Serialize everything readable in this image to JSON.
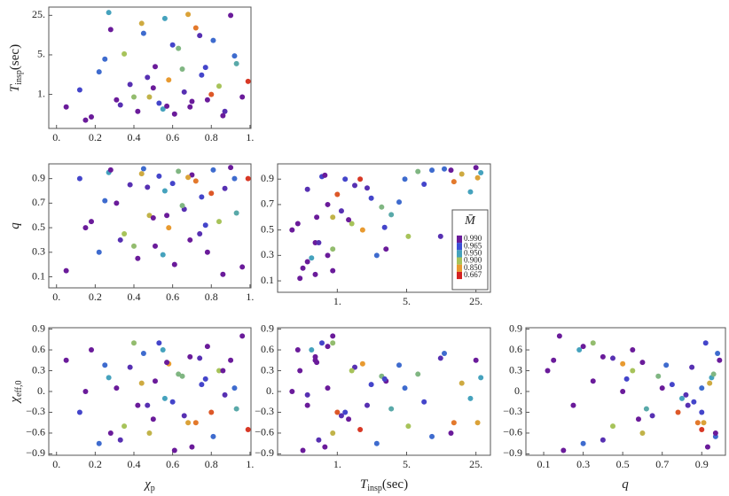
{
  "chart_data": {
    "type": "corner-scatter",
    "samples": {
      "chi_p": [
        0.05,
        0.12,
        0.18,
        0.22,
        0.27,
        0.31,
        0.35,
        0.38,
        0.42,
        0.45,
        0.48,
        0.51,
        0.53,
        0.56,
        0.58,
        0.61,
        0.63,
        0.66,
        0.69,
        0.72,
        0.75,
        0.78,
        0.81,
        0.84,
        0.87,
        0.9,
        0.93,
        0.96,
        0.99,
        0.15,
        0.25,
        0.33,
        0.44,
        0.5,
        0.55,
        0.6,
        0.65,
        0.7,
        0.74,
        0.8,
        0.86,
        0.92,
        0.28,
        0.4,
        0.47,
        0.57,
        0.68,
        0.77
      ],
      "T_insp": [
        0.6,
        1.2,
        0.4,
        2.5,
        28,
        0.8,
        5.2,
        1.5,
        0.5,
        12,
        0.9,
        3.1,
        0.7,
        22,
        1.8,
        0.45,
        6.5,
        1.1,
        0.6,
        15,
        2.2,
        0.8,
        9,
        1.4,
        0.5,
        25,
        3.5,
        0.9,
        1.7,
        0.35,
        4.2,
        0.65,
        18,
        1.3,
        0.55,
        7.5,
        2.8,
        0.75,
        11,
        1.0,
        0.42,
        4.8,
        14,
        0.9,
        2.0,
        0.62,
        26,
        3.0
      ],
      "q": [
        0.15,
        0.9,
        0.55,
        0.3,
        0.95,
        0.7,
        0.45,
        0.85,
        0.25,
        0.98,
        0.6,
        0.35,
        0.92,
        0.8,
        0.5,
        0.2,
        0.96,
        0.65,
        0.4,
        0.88,
        0.75,
        0.3,
        0.97,
        0.55,
        0.82,
        0.99,
        0.62,
        0.18,
        0.9,
        0.5,
        0.72,
        0.4,
        0.94,
        0.58,
        0.28,
        0.86,
        0.68,
        0.93,
        0.45,
        0.78,
        0.12,
        0.9,
        0.97,
        0.35,
        0.83,
        0.6,
        0.91,
        0.52
      ],
      "chi_eff": [
        0.45,
        -0.3,
        0.6,
        -0.75,
        0.2,
        0.05,
        -0.5,
        0.35,
        -0.2,
        0.55,
        -0.6,
        0.15,
        0.7,
        -0.1,
        0.4,
        -0.85,
        0.25,
        -0.35,
        0.5,
        -0.45,
        0.1,
        0.65,
        -0.65,
        0.3,
        -0.05,
        0.45,
        -0.25,
        0.8,
        -0.55,
        0.0,
        0.38,
        -0.7,
        0.12,
        -0.4,
        0.6,
        -0.15,
        0.22,
        -0.8,
        0.48,
        -0.3,
        0.3,
        0.05,
        -0.6,
        0.7,
        -0.2,
        0.42,
        -0.45,
        0.18
      ],
      "mass": [
        0.99,
        0.97,
        0.99,
        0.96,
        0.95,
        0.99,
        0.9,
        0.98,
        0.99,
        0.96,
        0.88,
        0.99,
        0.97,
        0.95,
        0.85,
        0.99,
        0.92,
        0.98,
        0.99,
        0.8,
        0.97,
        0.99,
        0.96,
        0.9,
        0.98,
        0.99,
        0.94,
        0.99,
        0.7,
        0.99,
        0.96,
        0.98,
        0.87,
        0.99,
        0.95,
        0.97,
        0.92,
        0.99,
        0.98,
        0.75,
        0.99,
        0.96,
        0.99,
        0.91,
        0.98,
        0.99,
        0.86,
        0.97
      ]
    },
    "axes": {
      "chi_p": {
        "label": {
          "symbol": "χ",
          "sub": "p"
        },
        "log": false,
        "lim": [
          -0.04,
          1.005
        ],
        "ticks": [
          {
            "value": 0,
            "label": "0."
          },
          0.2,
          0.4,
          0.6,
          0.8,
          {
            "value": 1,
            "label": "1."
          }
        ]
      },
      "T_insp": {
        "label": {
          "symbol": "T",
          "sub": "insp",
          "unit": "(sec)"
        },
        "log": true,
        "lim": [
          0.25,
          35
        ],
        "ticks": [
          {
            "value": 1,
            "label": "1."
          },
          {
            "value": 5,
            "label": "5."
          },
          {
            "value": 25,
            "label": "25."
          }
        ]
      },
      "q": {
        "label": {
          "symbol": "q"
        },
        "log": false,
        "lim": [
          0.01,
          1.02
        ],
        "ticks": [
          0.1,
          0.3,
          0.5,
          0.7,
          0.9
        ]
      },
      "chi_eff": {
        "label": {
          "symbol": "χ",
          "sub": "eff,0"
        },
        "log": false,
        "lim": [
          -0.92,
          0.92
        ],
        "ticks": [
          {
            "value": -0.9,
            "label": "−0.9"
          },
          {
            "value": -0.6,
            "label": "−0.6"
          },
          {
            "value": -0.3,
            "label": "−0.3"
          },
          {
            "value": 0,
            "label": "0."
          },
          0.3,
          0.6,
          0.9
        ]
      }
    },
    "colorbar": {
      "title": "M̄",
      "ticks": [
        {
          "value": 0.99,
          "label": "0.990"
        },
        {
          "value": 0.965,
          "label": "0.965"
        },
        {
          "value": 0.95,
          "label": "0.950"
        },
        {
          "value": 0.9,
          "label": "0.900"
        },
        {
          "value": 0.85,
          "label": "0.850"
        },
        {
          "value": 0.667,
          "label": "0.667"
        }
      ],
      "colors": [
        "#6a1b9a",
        "#3b4fd6",
        "#45a2bd",
        "#a7c35a",
        "#e89a30",
        "#d42222"
      ]
    }
  }
}
